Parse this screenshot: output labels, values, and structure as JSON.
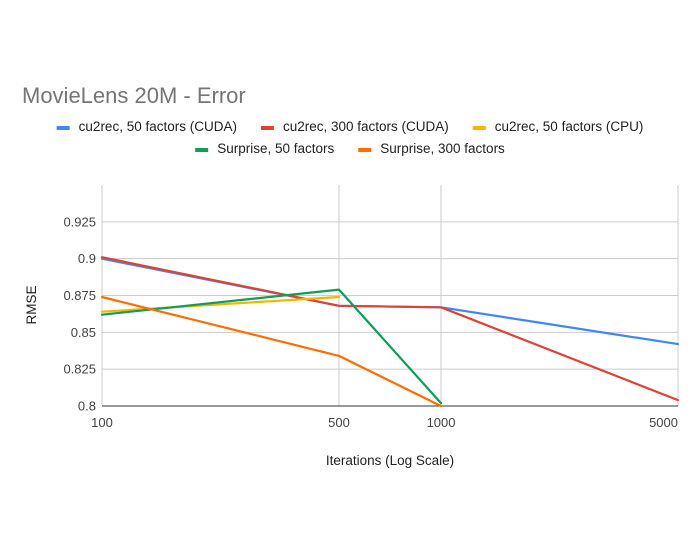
{
  "chart_data": {
    "type": "line",
    "title": "MovieLens 20M - Error",
    "xlabel": "Iterations (Log Scale)",
    "ylabel": "RMSE",
    "x_scale": "log",
    "x_ticks": [
      100,
      500,
      1000,
      5000
    ],
    "x_tick_labels": [
      "100",
      "500",
      "1000",
      "5000"
    ],
    "xlim": [
      100,
      5000
    ],
    "y_ticks": [
      0.8,
      0.825,
      0.85,
      0.875,
      0.9,
      0.925
    ],
    "y_tick_labels": [
      "0.8",
      "0.825",
      "0.85",
      "0.875",
      "0.9",
      "0.925"
    ],
    "ylim": [
      0.8,
      0.95
    ],
    "grid": true,
    "legend_position": "top",
    "series": [
      {
        "name": "cu2rec, 50 factors (CUDA)",
        "color": "#4285F4",
        "points": [
          [
            100,
            0.9
          ],
          [
            500,
            0.868
          ],
          [
            1000,
            0.867
          ],
          [
            5000,
            0.842
          ]
        ]
      },
      {
        "name": "cu2rec, 300 factors (CUDA)",
        "color": "#DB4437",
        "points": [
          [
            100,
            0.901
          ],
          [
            500,
            0.868
          ],
          [
            1000,
            0.867
          ],
          [
            5000,
            0.804
          ]
        ]
      },
      {
        "name": "cu2rec, 50 factors (CPU)",
        "color": "#F4B400",
        "points": [
          [
            100,
            0.864
          ],
          [
            500,
            0.874
          ]
        ]
      },
      {
        "name": "Surprise, 50 factors",
        "color": "#0F9D58",
        "points": [
          [
            100,
            0.862
          ],
          [
            500,
            0.879
          ],
          [
            1000,
            0.802
          ]
        ]
      },
      {
        "name": "Surprise, 300 factors",
        "color": "#FF6D00",
        "points": [
          [
            100,
            0.874
          ],
          [
            500,
            0.834
          ],
          [
            1000,
            0.8
          ]
        ]
      }
    ]
  }
}
